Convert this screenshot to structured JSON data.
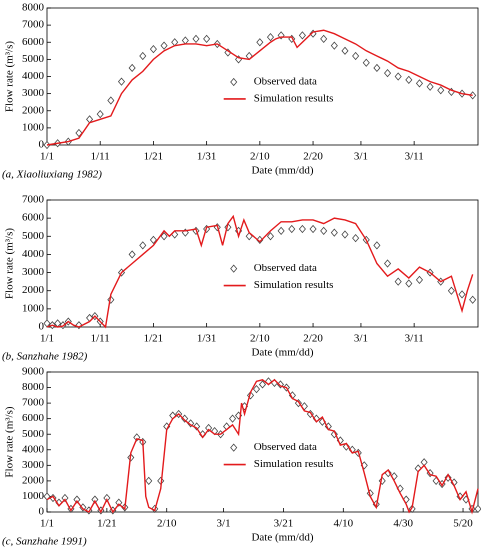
{
  "chart_data": [
    {
      "type": "line",
      "caption": "(a, Xiaoliuxiang  1982)",
      "xlabel": "Date (mm/dd)",
      "ylabel": "Flow rate (m³/s)",
      "legend": "center",
      "xlim": [
        0,
        81
      ],
      "xticks": [
        {
          "value": 0,
          "label": "1/1"
        },
        {
          "value": 10,
          "label": "1/11"
        },
        {
          "value": 20,
          "label": "1/21"
        },
        {
          "value": 30,
          "label": "1/31"
        },
        {
          "value": 40,
          "label": "2/10"
        },
        {
          "value": 50,
          "label": "2/20"
        },
        {
          "value": 59,
          "label": "3/1"
        },
        {
          "value": 69,
          "label": "3/11"
        }
      ],
      "ylim": [
        0,
        8000
      ],
      "yticks": [
        0,
        1000,
        2000,
        3000,
        4000,
        5000,
        6000,
        7000,
        8000
      ],
      "series": [
        {
          "name": "Observed data",
          "color": "#444444",
          "marker": "diamond",
          "x": [
            0,
            2,
            4,
            6,
            8,
            10,
            12,
            14,
            16,
            18,
            20,
            22,
            24,
            26,
            28,
            30,
            32,
            34,
            36,
            38,
            40,
            42,
            44,
            46,
            48,
            50,
            52,
            54,
            56,
            58,
            60,
            62,
            64,
            66,
            68,
            70,
            72,
            74,
            76,
            78,
            80
          ],
          "values": [
            0,
            100,
            200,
            700,
            1500,
            1800,
            2600,
            3700,
            4500,
            5200,
            5600,
            5800,
            6000,
            6100,
            6200,
            6200,
            5900,
            5400,
            5000,
            5200,
            6000,
            6300,
            6400,
            6200,
            6400,
            6500,
            6200,
            5800,
            5500,
            5200,
            4800,
            4500,
            4200,
            4000,
            3800,
            3600,
            3400,
            3200,
            3100,
            3000,
            2900
          ]
        },
        {
          "name": "Simulation results",
          "color": "#e31a1c",
          "x": [
            0,
            4,
            6,
            8,
            10,
            12,
            14,
            16,
            18,
            20,
            22,
            24,
            26,
            28,
            30,
            32,
            34,
            36,
            38,
            40,
            42,
            43,
            44,
            46,
            47,
            48,
            50,
            52,
            54,
            56,
            58,
            60,
            62,
            64,
            66,
            68,
            70,
            72,
            74,
            76,
            78,
            80
          ],
          "values": [
            0,
            200,
            400,
            1300,
            1500,
            1700,
            3000,
            3800,
            4300,
            5000,
            5500,
            5800,
            5900,
            5900,
            5800,
            5900,
            5500,
            5100,
            5000,
            5500,
            6000,
            6200,
            6300,
            6300,
            5700,
            6000,
            6600,
            6700,
            6500,
            6200,
            5900,
            5500,
            5200,
            4900,
            4500,
            4300,
            4000,
            3700,
            3500,
            3200,
            3000,
            2900
          ]
        }
      ]
    },
    {
      "type": "line",
      "caption": "(b, Sanzhahe 1982)",
      "xlabel": "Date (mm/dd)",
      "ylabel": "Flow rate (m³/s)",
      "legend": "center",
      "xlim": [
        0,
        81
      ],
      "xticks": [
        {
          "value": 0,
          "label": "1/1"
        },
        {
          "value": 10,
          "label": "1/11"
        },
        {
          "value": 20,
          "label": "1/21"
        },
        {
          "value": 30,
          "label": "1/31"
        },
        {
          "value": 40,
          "label": "2/10"
        },
        {
          "value": 50,
          "label": "2/20"
        },
        {
          "value": 59,
          "label": "3/1"
        },
        {
          "value": 69,
          "label": "3/11"
        }
      ],
      "ylim": [
        0,
        7000
      ],
      "yticks": [
        0,
        1000,
        2000,
        3000,
        4000,
        5000,
        6000,
        7000
      ],
      "series": [
        {
          "name": "Observed data",
          "color": "#444444",
          "marker": "diamond",
          "x": [
            0,
            1,
            2,
            3,
            4,
            6,
            8,
            9,
            10,
            12,
            14,
            16,
            18,
            20,
            22,
            24,
            26,
            28,
            30,
            32,
            34,
            36,
            38,
            40,
            42,
            44,
            46,
            48,
            50,
            52,
            54,
            56,
            58,
            60,
            62,
            64,
            66,
            68,
            70,
            72,
            74,
            76,
            78,
            80
          ],
          "values": [
            200,
            100,
            200,
            100,
            300,
            100,
            500,
            600,
            300,
            1500,
            3000,
            4000,
            4500,
            4800,
            5000,
            5100,
            5200,
            5300,
            5400,
            5500,
            5500,
            5300,
            5000,
            4800,
            5000,
            5300,
            5400,
            5400,
            5400,
            5300,
            5200,
            5100,
            4900,
            4800,
            4500,
            3500,
            2500,
            2400,
            2600,
            3000,
            2500,
            2000,
            1800,
            1500
          ]
        },
        {
          "name": "Simulation results",
          "color": "#e31a1c",
          "x": [
            0,
            1,
            2,
            3,
            4,
            5,
            6,
            8,
            9,
            10,
            11,
            12,
            14,
            16,
            18,
            20,
            22,
            23,
            24,
            26,
            28,
            29,
            30,
            32,
            33,
            34,
            35,
            36,
            37,
            38,
            40,
            42,
            44,
            46,
            48,
            50,
            52,
            54,
            56,
            58,
            60,
            62,
            64,
            66,
            68,
            70,
            72,
            74,
            76,
            78,
            79,
            80
          ],
          "values": [
            0,
            100,
            0,
            50,
            300,
            100,
            0,
            300,
            600,
            300,
            0,
            1800,
            3000,
            3500,
            4000,
            4500,
            5300,
            5000,
            5300,
            5300,
            5400,
            4500,
            5500,
            5600,
            4500,
            5700,
            6100,
            5000,
            5900,
            5200,
            4700,
            5300,
            5800,
            5800,
            5900,
            5900,
            5700,
            6000,
            5900,
            5700,
            4800,
            3500,
            2800,
            3200,
            2700,
            3300,
            3000,
            2500,
            2800,
            900,
            2000,
            2900
          ]
        }
      ]
    },
    {
      "type": "line",
      "caption": "(c, Sanzhahe 1991)",
      "xlabel": "Date (mm/dd)",
      "ylabel": "Flow rate (m³/s)",
      "legend": "center",
      "xlim": [
        0,
        144
      ],
      "xticks": [
        {
          "value": 0,
          "label": "1/1"
        },
        {
          "value": 20,
          "label": "1/21"
        },
        {
          "value": 40,
          "label": "2/10"
        },
        {
          "value": 59,
          "label": "3/1"
        },
        {
          "value": 79,
          "label": "3/21"
        },
        {
          "value": 99,
          "label": "4/10"
        },
        {
          "value": 119,
          "label": "4/30"
        },
        {
          "value": 139,
          "label": "5/20"
        }
      ],
      "ylim": [
        0,
        9000
      ],
      "yticks": [
        0,
        1000,
        2000,
        3000,
        4000,
        5000,
        6000,
        7000,
        8000,
        9000
      ],
      "series": [
        {
          "name": "Observed data",
          "color": "#444444",
          "marker": "diamond",
          "x": [
            0,
            2,
            4,
            6,
            8,
            10,
            12,
            14,
            16,
            18,
            20,
            22,
            24,
            26,
            28,
            30,
            32,
            34,
            36,
            38,
            40,
            42,
            44,
            46,
            48,
            50,
            52,
            54,
            56,
            58,
            60,
            62,
            64,
            66,
            68,
            70,
            72,
            74,
            76,
            78,
            80,
            82,
            84,
            86,
            88,
            90,
            92,
            94,
            96,
            98,
            100,
            102,
            104,
            106,
            108,
            110,
            112,
            114,
            116,
            118,
            120,
            122,
            124,
            126,
            128,
            130,
            132,
            134,
            136,
            138,
            140,
            142,
            144
          ],
          "values": [
            1000,
            900,
            600,
            900,
            200,
            800,
            300,
            100,
            800,
            100,
            900,
            100,
            600,
            300,
            3500,
            4800,
            4500,
            2000,
            200,
            2000,
            5500,
            6200,
            6300,
            6000,
            5700,
            5500,
            5000,
            5400,
            5200,
            5000,
            5500,
            6000,
            6200,
            6800,
            7500,
            7900,
            8200,
            8400,
            8300,
            8200,
            8000,
            7500,
            7000,
            6800,
            6300,
            6000,
            5800,
            5500,
            5000,
            4600,
            4200,
            4000,
            3800,
            3000,
            1200,
            500,
            2000,
            2500,
            2300,
            1500,
            800,
            200,
            2800,
            3200,
            2500,
            2000,
            1800,
            2200,
            1900,
            1000,
            800,
            200,
            200
          ]
        },
        {
          "name": "Simulation results",
          "color": "#e31a1c",
          "x": [
            0,
            2,
            4,
            6,
            8,
            10,
            12,
            14,
            16,
            18,
            20,
            22,
            24,
            26,
            28,
            30,
            32,
            33,
            34,
            36,
            38,
            40,
            42,
            44,
            46,
            48,
            50,
            52,
            54,
            56,
            58,
            60,
            62,
            64,
            65,
            66,
            68,
            70,
            72,
            74,
            76,
            78,
            80,
            82,
            84,
            86,
            88,
            90,
            92,
            94,
            96,
            98,
            100,
            102,
            104,
            106,
            108,
            110,
            112,
            114,
            116,
            118,
            120,
            121,
            122,
            124,
            126,
            128,
            130,
            132,
            134,
            136,
            138,
            140,
            142,
            144
          ],
          "values": [
            800,
            1000,
            400,
            800,
            100,
            700,
            200,
            0,
            700,
            0,
            800,
            0,
            500,
            200,
            3800,
            4700,
            4600,
            1000,
            300,
            100,
            1500,
            5300,
            6000,
            6300,
            5900,
            5600,
            5400,
            4800,
            5300,
            5000,
            5000,
            5300,
            5600,
            5000,
            7000,
            6300,
            7700,
            8400,
            8500,
            8200,
            8500,
            8100,
            8000,
            7300,
            7100,
            6500,
            6400,
            5800,
            6100,
            5300,
            5200,
            4300,
            4400,
            3800,
            3900,
            2500,
            1000,
            300,
            2400,
            2700,
            2000,
            1200,
            500,
            0,
            300,
            2600,
            3000,
            2400,
            2300,
            1700,
            2400,
            1700,
            800,
            1300,
            0,
            1500
          ]
        }
      ]
    }
  ]
}
